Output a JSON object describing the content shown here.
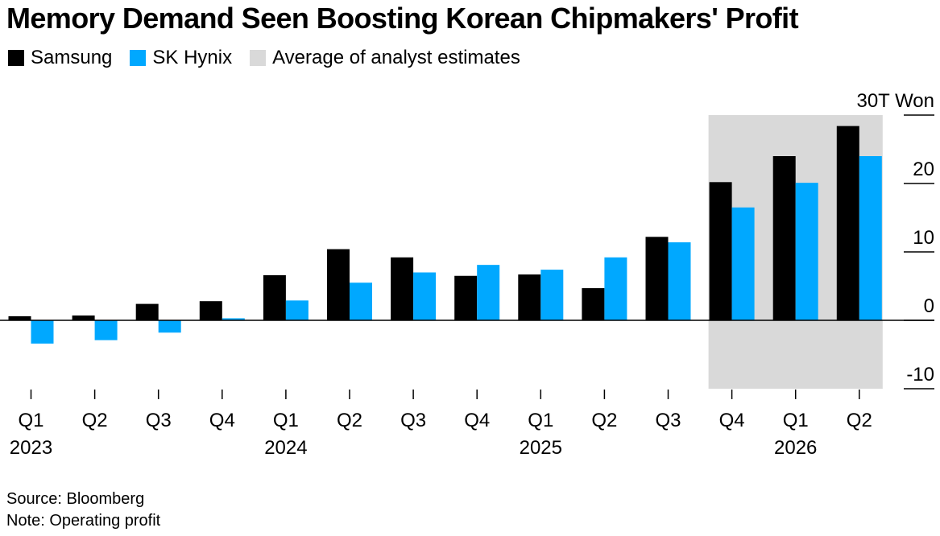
{
  "title": "Memory Demand Seen Boosting Korean Chipmakers' Profit",
  "legend": [
    {
      "label": "Samsung",
      "color": "#000000"
    },
    {
      "label": "SK Hynix",
      "color": "#00a8ff"
    },
    {
      "label": "Average of analyst estimates",
      "color": "#d9d9d9"
    }
  ],
  "footer": {
    "source": "Source: Bloomberg",
    "note": "Note: Operating profit"
  },
  "chart_data": {
    "type": "bar",
    "unit_label": "30T Won",
    "quarters": [
      "Q1",
      "Q2",
      "Q3",
      "Q4",
      "Q1",
      "Q2",
      "Q3",
      "Q4",
      "Q1",
      "Q2",
      "Q3",
      "Q4",
      "Q1",
      "Q2"
    ],
    "years": [
      {
        "label": "2023",
        "start_index": 0
      },
      {
        "label": "2024",
        "start_index": 4
      },
      {
        "label": "2025",
        "start_index": 8
      },
      {
        "label": "2026",
        "start_index": 12
      }
    ],
    "series": [
      {
        "name": "Samsung",
        "color": "#000000",
        "values": [
          0.6,
          0.7,
          2.4,
          2.8,
          6.6,
          10.4,
          9.2,
          6.5,
          6.7,
          4.7,
          12.2,
          20.2,
          24.0,
          28.4
        ]
      },
      {
        "name": "SK Hynix",
        "color": "#00a8ff",
        "values": [
          -3.4,
          -2.9,
          -1.8,
          0.3,
          2.9,
          5.5,
          7.0,
          8.1,
          7.4,
          9.2,
          11.4,
          16.5,
          20.1,
          24.0
        ]
      }
    ],
    "estimate_start_index": 11,
    "estimate_label": "Average of analyst estimates",
    "y_ticks": [
      30,
      20,
      10,
      0,
      -10
    ],
    "y_tick_labels": [
      "30T Won",
      "20",
      "10",
      "0",
      "-10"
    ],
    "ylim": [
      -10,
      30
    ]
  }
}
